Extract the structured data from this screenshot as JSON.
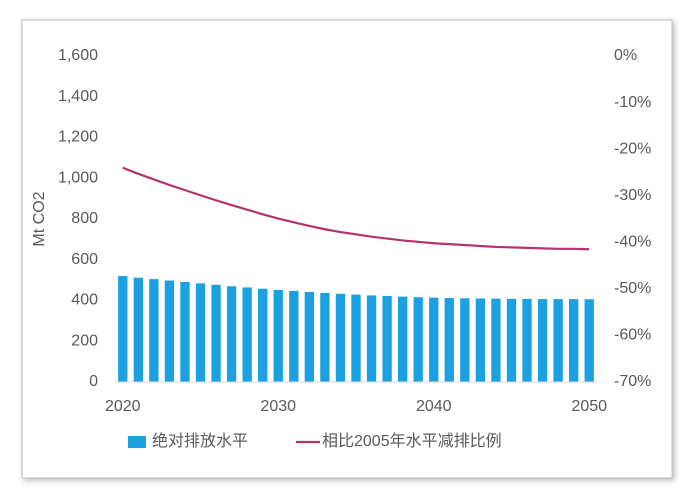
{
  "chart_data": {
    "type": "bar-line",
    "y_label": "Mt CO2",
    "x": [
      2020,
      2021,
      2022,
      2023,
      2024,
      2025,
      2026,
      2027,
      2028,
      2029,
      2030,
      2031,
      2032,
      2033,
      2034,
      2035,
      2036,
      2037,
      2038,
      2039,
      2040,
      2041,
      2042,
      2043,
      2044,
      2045,
      2046,
      2047,
      2048,
      2049,
      2050
    ],
    "xlim": [
      2019.5,
      2050.5
    ],
    "xticks": [
      2020,
      2030,
      2040,
      2050
    ],
    "ylim": [
      0,
      1600
    ],
    "yticks": [
      0,
      200,
      400,
      600,
      800,
      {
        "value": 1000,
        "label": "1,000"
      },
      {
        "value": 1200,
        "label": "1,200"
      },
      {
        "value": 1400,
        "label": "1,400"
      },
      {
        "value": 1600,
        "label": "1,600"
      }
    ],
    "y2lim": [
      -70,
      0
    ],
    "y2ticks": [
      {
        "value": -70,
        "label": "-70%"
      },
      {
        "value": -60,
        "label": "-60%"
      },
      {
        "value": -50,
        "label": "-50%"
      },
      {
        "value": -40,
        "label": "-40%"
      },
      {
        "value": -30,
        "label": "-30%"
      },
      {
        "value": -20,
        "label": "-20%"
      },
      {
        "value": -10,
        "label": "-10%"
      },
      {
        "value": 0,
        "label": "0%"
      }
    ],
    "series": [
      {
        "name": "绝对排放水平",
        "color": "#1ba1e2",
        "type": "bar",
        "values": [
          520,
          512,
          505,
          498,
          491,
          484,
          477,
          470,
          464,
          458,
          452,
          447,
          442,
          437,
          433,
          429,
          425,
          422,
          419,
          416,
          414,
          412,
          411,
          410,
          409,
          408,
          408,
          407,
          407,
          407,
          406
        ]
      },
      {
        "name": "相比2005年水平减排比例",
        "color": "#b5336a",
        "type": "line",
        "axis": "y2",
        "values": [
          -24,
          -25.3,
          -26.5,
          -27.7,
          -28.8,
          -29.9,
          -31,
          -32,
          -33,
          -34,
          -34.9,
          -35.7,
          -36.5,
          -37.2,
          -37.8,
          -38.3,
          -38.8,
          -39.2,
          -39.6,
          -39.9,
          -40.2,
          -40.4,
          -40.6,
          -40.8,
          -41,
          -41.1,
          -41.2,
          -41.3,
          -41.4,
          -41.4,
          -41.5
        ]
      }
    ]
  }
}
